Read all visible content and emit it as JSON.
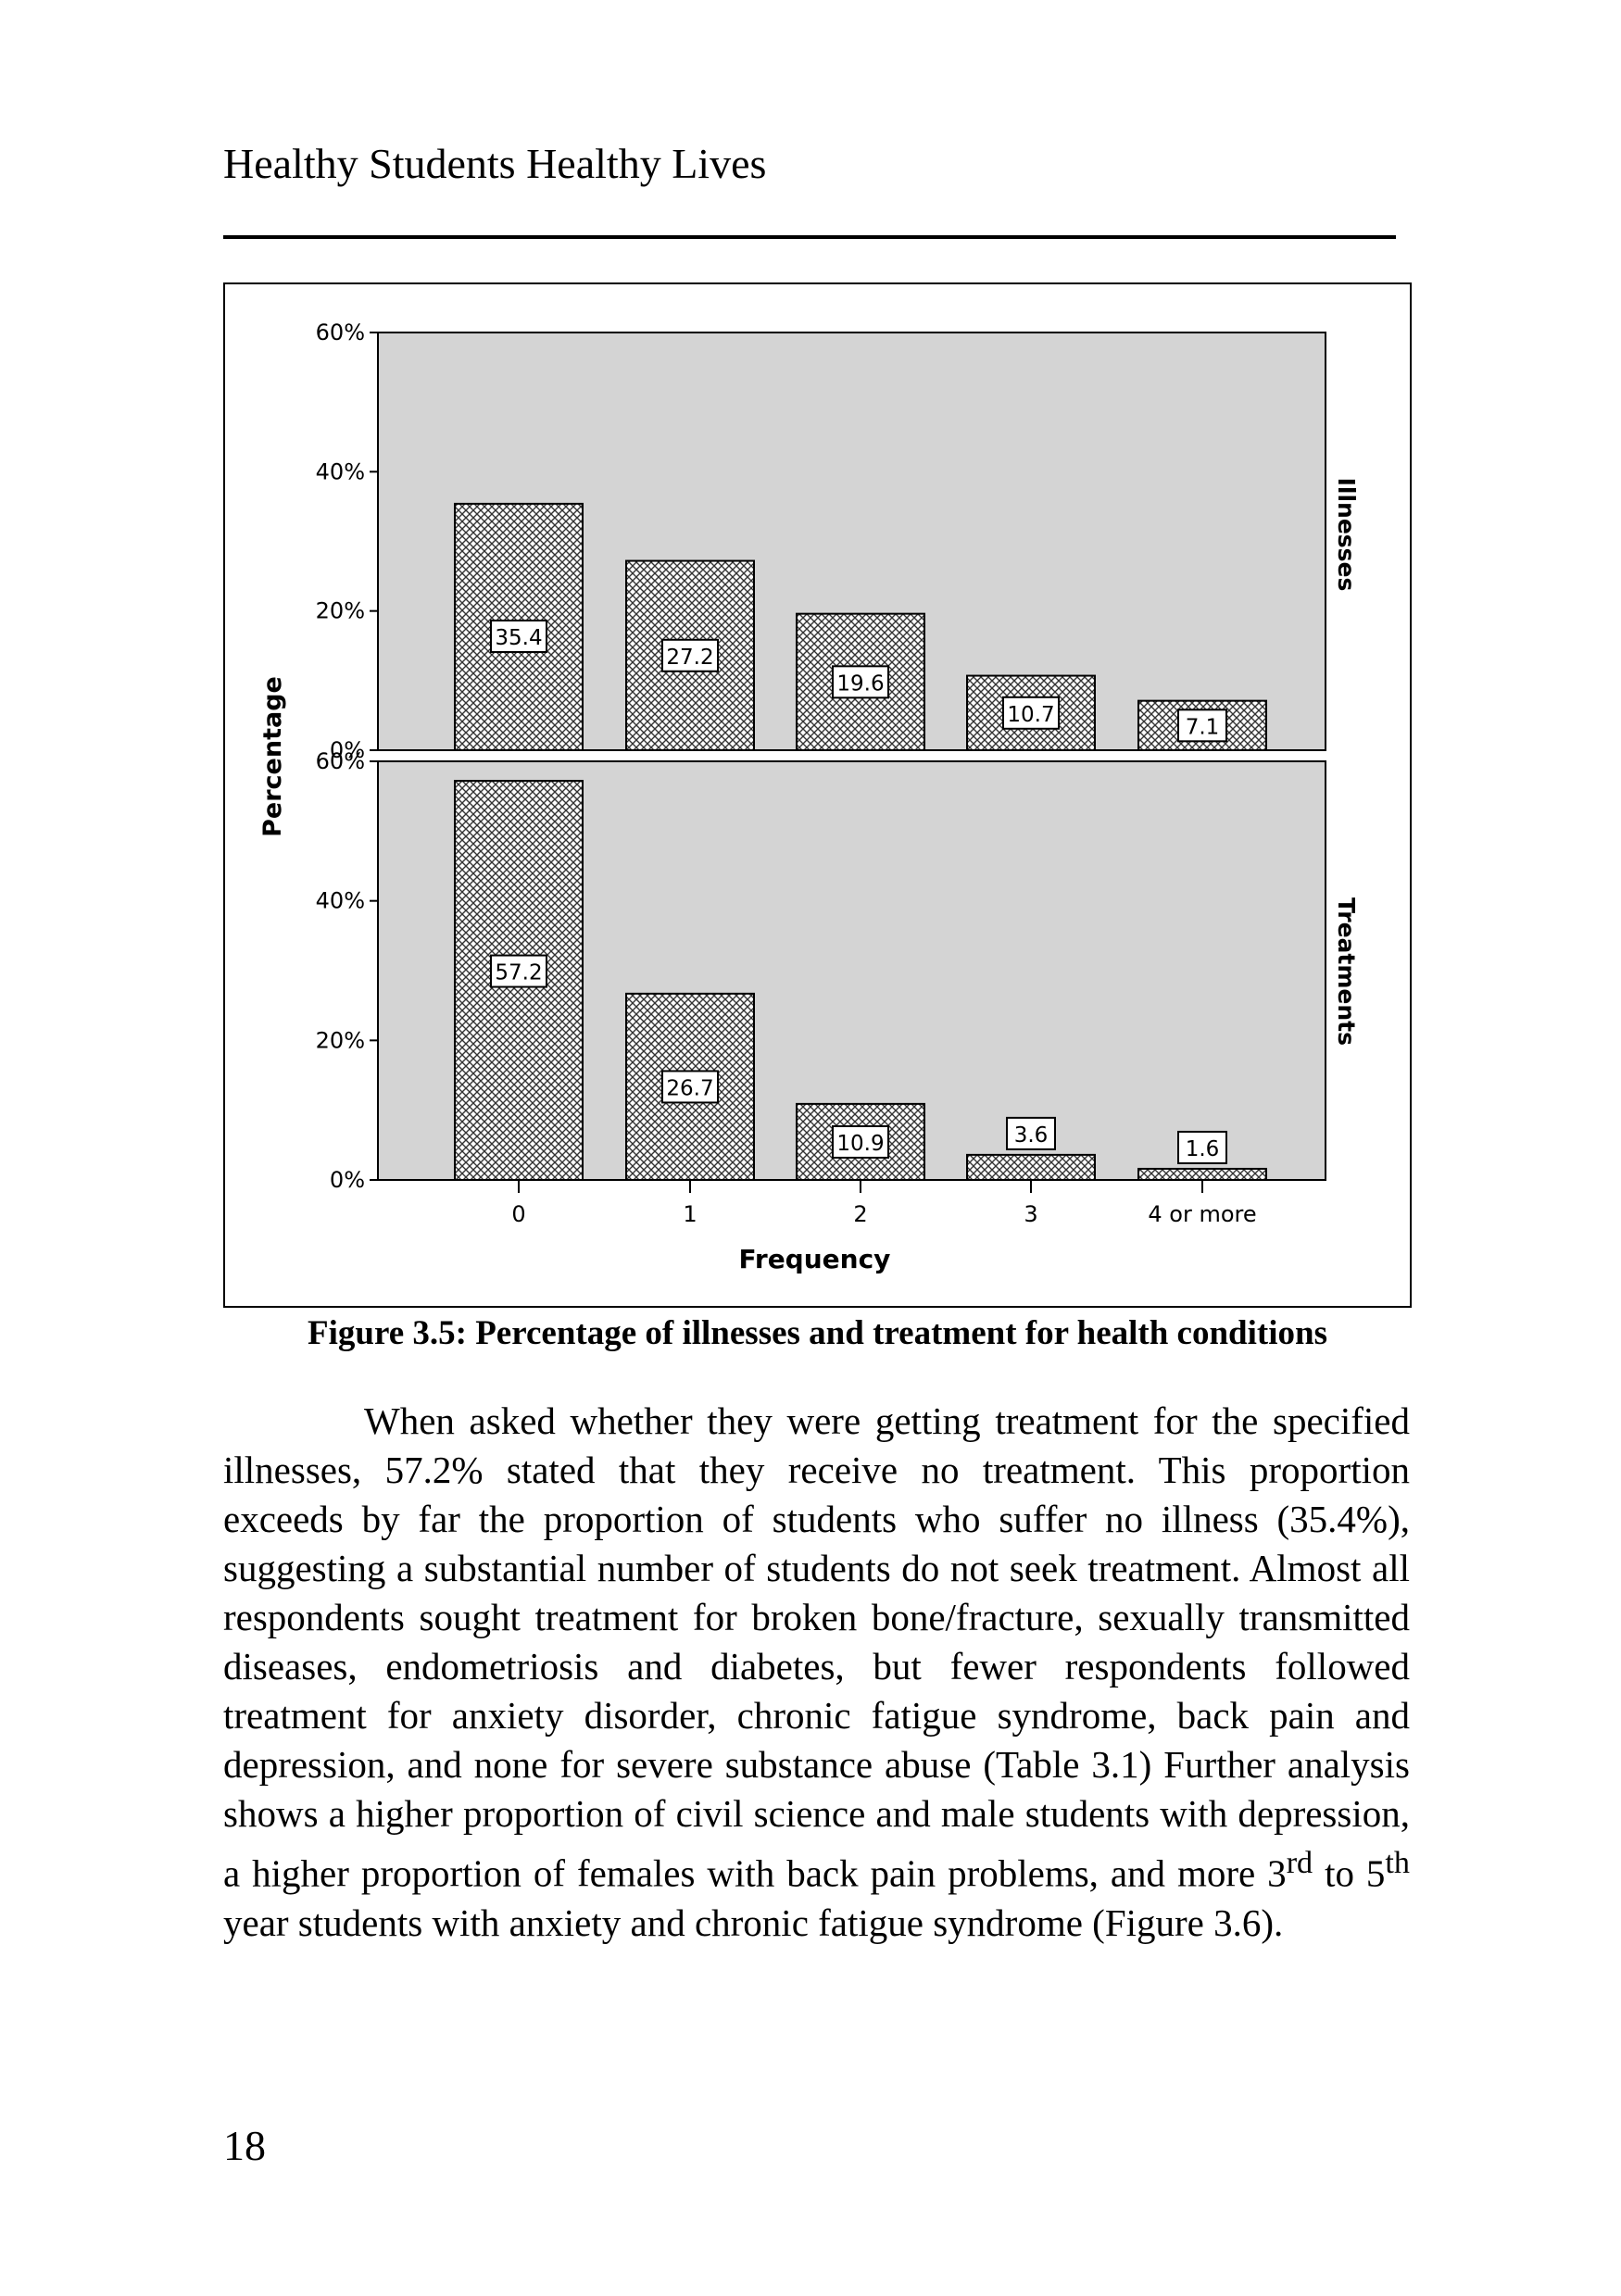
{
  "header": {
    "running_title": "Healthy Students Healthy Lives"
  },
  "figure": {
    "caption": "Figure 3.5: Percentage of illnesses and treatment for health conditions"
  },
  "chart_data": {
    "type": "bar",
    "ylabel": "Percentage",
    "xlabel": "Frequency",
    "categories": [
      "0",
      "1",
      "2",
      "3",
      "4 or more"
    ],
    "ylim": [
      0,
      60
    ],
    "yticks": [
      "60%",
      "40%",
      "20%",
      "0%"
    ],
    "panels": [
      {
        "name": "Illnesses",
        "values": [
          35.4,
          27.2,
          19.6,
          10.7,
          7.1
        ],
        "labels": [
          "35.4",
          "27.2",
          "19.6",
          "10.7",
          "7.1"
        ]
      },
      {
        "name": "Treatments",
        "values": [
          57.2,
          26.7,
          10.9,
          3.6,
          1.6
        ],
        "labels": [
          "57.2",
          "26.7",
          "10.9",
          "3.6",
          "1.6"
        ]
      }
    ],
    "background_color": "#d4d4d4",
    "bar_pattern": "crosshatch",
    "grid": false
  },
  "body": {
    "p1_a": "When asked whether they were getting treatment for the specified illnesses, 57.2% stated that they receive no treatment. This proportion exceeds by far the proportion of students who suffer no illness (35.4%), suggesting a substantial number of students do not seek treatment. Almost all respondents sought treatment for broken bone/fracture, sexually transmitted diseases, endometriosis and diabetes, but fewer respondents followed treatment for anxiety disorder, chronic fatigue syndrome, back pain and depression, and none for severe substance abuse (Table 3.1)  Further analysis shows a higher proportion of civil science and male students with depression, a higher proportion of females with back pain problems, and more 3",
    "sup1": "rd",
    "p1_b": " to 5",
    "sup2": "th",
    "p1_c": " year students with anxiety and chronic fatigue syndrome (Figure 3.6)."
  },
  "footer": {
    "page_number": "18"
  }
}
